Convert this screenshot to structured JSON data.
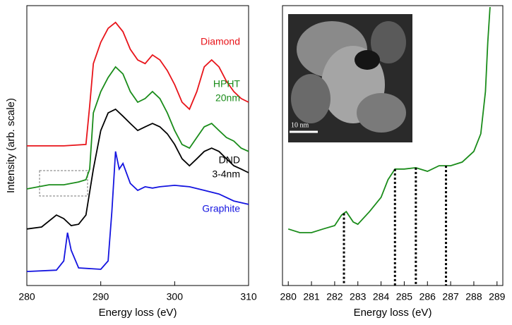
{
  "chart_data": [
    {
      "type": "line",
      "xlabel": "Energy loss (eV)",
      "ylabel": "Intensity (arb. scale)",
      "xlim": [
        280,
        310
      ],
      "xticks": [
        280,
        290,
        300,
        310
      ],
      "ylim": [
        0,
        100
      ],
      "series": [
        {
          "label": [
            "Diamond"
          ],
          "color": "#e8141a",
          "x": [
            280,
            285,
            288,
            288.5,
            289,
            290,
            291,
            292,
            293,
            294,
            295,
            296,
            297,
            298,
            299,
            300,
            301,
            302,
            303,
            304,
            305,
            306,
            307,
            308,
            309,
            310
          ],
          "values": [
            49.9,
            49.9,
            50.4,
            64.2,
            79.3,
            86.9,
            91.9,
            94.0,
            90.7,
            84.4,
            80.6,
            79.3,
            82.4,
            80.6,
            76.8,
            71.8,
            65.5,
            63.0,
            69.3,
            78.1,
            80.6,
            78.1,
            73.0,
            69.3,
            66.8,
            65.5
          ]
        },
        {
          "label": [
            "HPHT",
            "20nm"
          ],
          "color": "#1a8c1a",
          "x": [
            280,
            283,
            285,
            287,
            288,
            288.5,
            289,
            290,
            291,
            292,
            293,
            294,
            295,
            296,
            297,
            298,
            299,
            300,
            301,
            302,
            303,
            304,
            305,
            306,
            307,
            308,
            309,
            310
          ],
          "values": [
            34.5,
            36.0,
            36.0,
            37.0,
            37.8,
            41.6,
            61.7,
            69.3,
            74.3,
            78.1,
            75.6,
            69.3,
            65.5,
            66.8,
            69.3,
            66.8,
            61.7,
            55.4,
            50.4,
            49.1,
            52.9,
            56.7,
            57.9,
            55.4,
            52.9,
            51.6,
            49.1,
            47.9
          ]
        },
        {
          "label": [
            "DND",
            "3-4nm"
          ],
          "color": "#000000",
          "x": [
            280,
            282,
            284,
            285,
            286,
            287,
            288,
            289,
            290,
            291,
            292,
            293,
            294,
            295,
            296,
            297,
            298,
            299,
            300,
            301,
            302,
            303,
            304,
            305,
            306,
            307,
            308,
            309,
            310
          ],
          "values": [
            20.2,
            20.9,
            25.2,
            23.9,
            21.4,
            21.9,
            25.2,
            41.6,
            55.4,
            61.7,
            63.0,
            60.5,
            57.9,
            55.4,
            56.7,
            57.9,
            56.7,
            54.2,
            50.4,
            45.3,
            42.8,
            45.3,
            47.9,
            49.1,
            47.9,
            45.3,
            42.8,
            41.6,
            40.3
          ]
        },
        {
          "label": [
            "Graphite"
          ],
          "color": "#1414e0",
          "x": [
            280,
            284,
            285,
            285.5,
            286,
            287,
            290,
            291,
            291.5,
            292,
            292.5,
            293,
            294,
            295,
            296,
            297,
            298,
            300,
            302,
            304,
            306,
            308,
            310
          ],
          "values": [
            5.0,
            5.5,
            8.8,
            18.9,
            12.6,
            6.3,
            5.8,
            8.8,
            26.4,
            47.9,
            41.6,
            43.6,
            36.5,
            34.0,
            35.3,
            34.8,
            35.3,
            35.8,
            35.3,
            34.0,
            32.7,
            30.2,
            29.0
          ]
        }
      ]
    },
    {
      "type": "line",
      "xlabel": "Energy loss (eV)",
      "xlim": [
        279.75,
        289.25
      ],
      "xticks": [
        280,
        281,
        282,
        283,
        284,
        285,
        286,
        287,
        288,
        289
      ],
      "ylim": [
        0,
        100
      ],
      "inset_label": "10 nm",
      "markers": [
        282.4,
        284.6,
        285.5,
        286.8
      ],
      "series": [
        {
          "color": "#1a8c1a",
          "x": [
            280,
            280.5,
            281,
            281.5,
            282,
            282.3,
            282.5,
            282.8,
            283,
            283.5,
            284,
            284.3,
            284.6,
            285,
            285.5,
            286,
            286.5,
            287,
            287.5,
            288,
            288.3,
            288.5,
            288.6,
            288.7
          ],
          "values": [
            20.2,
            18.9,
            18.9,
            20.2,
            21.4,
            25.2,
            26.4,
            22.7,
            21.9,
            26.4,
            31.5,
            37.8,
            41.6,
            41.6,
            42.1,
            40.8,
            42.8,
            42.8,
            44.1,
            47.9,
            54.2,
            69.3,
            86.9,
            99.5
          ]
        }
      ]
    }
  ]
}
